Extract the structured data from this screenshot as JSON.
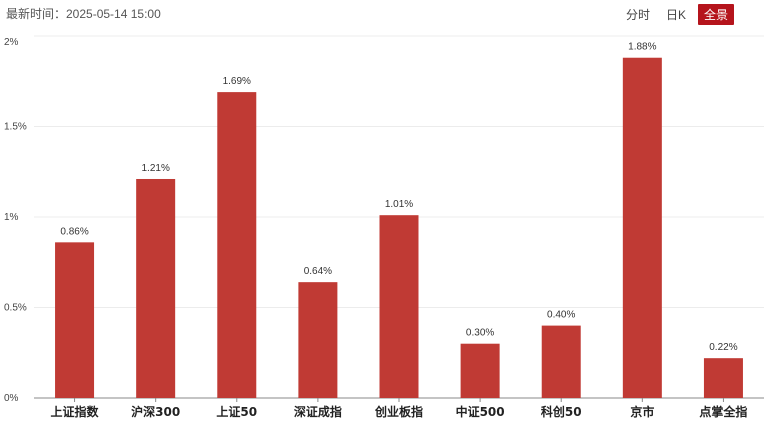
{
  "header": {
    "update_time": "最新时间：2025-05-14 15:00",
    "tabs": [
      {
        "label": "分时",
        "active": false
      },
      {
        "label": "日K",
        "active": false
      },
      {
        "label": "全景",
        "active": true
      }
    ]
  },
  "colors": {
    "bar": "#c03a34",
    "accent": "#b5141c"
  },
  "chart_data": {
    "type": "bar",
    "categories": [
      "上证指数",
      "沪深300",
      "上证50",
      "深证成指",
      "创业板指",
      "中证500",
      "科创50",
      "京市",
      "点掌全指"
    ],
    "values": [
      0.86,
      1.21,
      1.69,
      0.64,
      1.01,
      0.3,
      0.4,
      1.88,
      0.22
    ],
    "data_labels": [
      "0.86%",
      "1.21%",
      "1.69%",
      "0.64%",
      "1.01%",
      "0.30%",
      "0.40%",
      "1.88%",
      "0.22%"
    ],
    "yticks": [
      0,
      0.5,
      1,
      1.5,
      2
    ],
    "ytick_labels": [
      "0%",
      "0.5%",
      "1%",
      "1.5%",
      "2%"
    ],
    "ylim": [
      0,
      2
    ],
    "grid": true,
    "title": "",
    "xlabel": "",
    "ylabel": ""
  }
}
